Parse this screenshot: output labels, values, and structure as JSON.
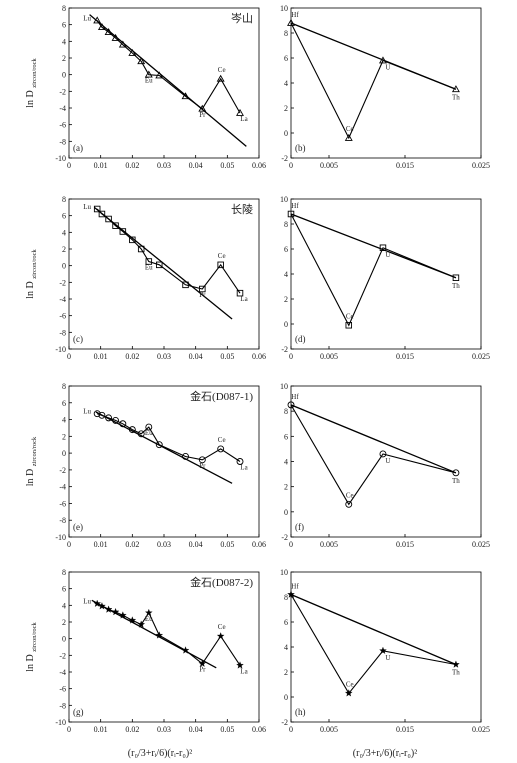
{
  "y_axis_label": {
    "main": "ln D",
    "sub": "zircon/rock"
  },
  "x_label_left": "(r₀/3+rᵢ/6)(rᵢ-r₀)²",
  "x_label_right": "(r₀/3+rᵢ/6)(rᵢ-r₀)²",
  "colors": {
    "axis": "#000000",
    "line": "#000000",
    "text": "#222222"
  },
  "chart_data": [
    {
      "type": "line",
      "panel": "a",
      "location": "岑山",
      "marker": "triangle",
      "xlim": [
        0,
        0.06
      ],
      "ylim": [
        -10,
        8
      ],
      "xticks": [
        0,
        0.01,
        0.02,
        0.03,
        0.04,
        0.05,
        0.06
      ],
      "yticks": [
        -10,
        -8,
        -6,
        -4,
        -2,
        0,
        2,
        4,
        6,
        8
      ],
      "series": [
        {
          "x": [
            0.0089,
            0.0104,
            0.0125,
            0.0147,
            0.017,
            0.02,
            0.0228,
            0.0252,
            0.0285,
            0.0368,
            0.0421,
            0.0479,
            0.054
          ],
          "y": [
            6.5,
            5.7,
            5.1,
            4.4,
            3.6,
            2.6,
            1.6,
            0.0,
            -0.1,
            -2.6,
            -4.1,
            -0.5,
            -4.6
          ]
        }
      ],
      "fit": {
        "x": [
          0.0065,
          0.056
        ],
        "y": [
          7.2,
          -8.6
        ]
      },
      "labels": [
        {
          "text": "Lu",
          "x": 0.0089,
          "y": 6.5
        },
        {
          "text": "Eu",
          "x": 0.0252,
          "y": 0.0
        },
        {
          "text": "Ce",
          "x": 0.0479,
          "y": -0.5
        },
        {
          "text": "Pr",
          "x": 0.0421,
          "y": -4.1
        },
        {
          "text": "La",
          "x": 0.054,
          "y": -4.6
        }
      ]
    },
    {
      "type": "line",
      "panel": "b",
      "marker": "triangle",
      "xlim": [
        0,
        0.025
      ],
      "ylim": [
        -2,
        10
      ],
      "xticks": [
        0,
        0.005,
        0.015,
        0.025
      ],
      "yticks": [
        -2,
        0,
        2,
        4,
        6,
        8,
        10
      ],
      "series": [
        {
          "x": [
            0,
            0.0076,
            0.0121,
            0.0217
          ],
          "y": [
            8.8,
            -0.4,
            5.8,
            3.5
          ]
        }
      ],
      "fit": {
        "x": [
          0,
          0.0217
        ],
        "y": [
          8.8,
          3.5
        ]
      },
      "labels": [
        {
          "text": "Hf",
          "x": 0,
          "y": 8.8
        },
        {
          "text": "Ce",
          "x": 0.0076,
          "y": -0.4
        },
        {
          "text": "U",
          "x": 0.0121,
          "y": 5.8
        },
        {
          "text": "Th",
          "x": 0.0217,
          "y": 3.5
        }
      ]
    },
    {
      "type": "line",
      "panel": "c",
      "location": "长陵",
      "marker": "square",
      "xlim": [
        0,
        0.06
      ],
      "ylim": [
        -10,
        8
      ],
      "xticks": [
        0,
        0.01,
        0.02,
        0.03,
        0.04,
        0.05,
        0.06
      ],
      "yticks": [
        -10,
        -8,
        -6,
        -4,
        -2,
        0,
        2,
        4,
        6,
        8
      ],
      "series": [
        {
          "x": [
            0.0089,
            0.0104,
            0.0125,
            0.0147,
            0.017,
            0.02,
            0.0228,
            0.0252,
            0.0285,
            0.0368,
            0.0421,
            0.0479,
            0.054
          ],
          "y": [
            6.8,
            6.2,
            5.6,
            4.8,
            4.1,
            3.1,
            2.0,
            0.5,
            0.1,
            -2.3,
            -2.8,
            0.1,
            -3.3
          ]
        }
      ],
      "fit": {
        "x": [
          0.008,
          0.0515
        ],
        "y": [
          7.0,
          -6.4
        ]
      },
      "labels": [
        {
          "text": "Lu",
          "x": 0.0089,
          "y": 6.8
        },
        {
          "text": "Eu",
          "x": 0.0252,
          "y": 0.5
        },
        {
          "text": "Ce",
          "x": 0.0479,
          "y": 0.1
        },
        {
          "text": "Pr",
          "x": 0.0421,
          "y": -2.8
        },
        {
          "text": "La",
          "x": 0.054,
          "y": -3.3
        }
      ]
    },
    {
      "type": "line",
      "panel": "d",
      "marker": "square",
      "xlim": [
        0,
        0.025
      ],
      "ylim": [
        -2,
        10
      ],
      "xticks": [
        0,
        0.005,
        0.015,
        0.025
      ],
      "yticks": [
        -2,
        0,
        2,
        4,
        6,
        8,
        10
      ],
      "series": [
        {
          "x": [
            0,
            0.0076,
            0.0121,
            0.0217
          ],
          "y": [
            8.8,
            -0.1,
            6.1,
            3.7
          ]
        }
      ],
      "fit": {
        "x": [
          0,
          0.0217
        ],
        "y": [
          8.8,
          3.7
        ]
      },
      "labels": [
        {
          "text": "Hf",
          "x": 0,
          "y": 8.8
        },
        {
          "text": "Ce",
          "x": 0.0076,
          "y": -0.1
        },
        {
          "text": "U",
          "x": 0.0121,
          "y": 6.1
        },
        {
          "text": "Th",
          "x": 0.0217,
          "y": 3.7
        }
      ]
    },
    {
      "type": "line",
      "panel": "e",
      "location": "金石(D087-1)",
      "marker": "circle",
      "xlim": [
        0,
        0.06
      ],
      "ylim": [
        -10,
        8
      ],
      "xticks": [
        0,
        0.01,
        0.02,
        0.03,
        0.04,
        0.05,
        0.06
      ],
      "yticks": [
        -10,
        -8,
        -6,
        -4,
        -2,
        0,
        2,
        4,
        6,
        8
      ],
      "series": [
        {
          "x": [
            0.0089,
            0.0104,
            0.0125,
            0.0147,
            0.017,
            0.02,
            0.0228,
            0.0252,
            0.0285,
            0.0368,
            0.0421,
            0.0479,
            0.054
          ],
          "y": [
            4.7,
            4.5,
            4.2,
            3.9,
            3.5,
            2.8,
            2.3,
            3.1,
            1.0,
            -0.4,
            -0.8,
            0.5,
            -1.0
          ]
        }
      ],
      "fit": {
        "x": [
          0.0085,
          0.0515
        ],
        "y": [
          4.9,
          -3.6
        ]
      },
      "labels": [
        {
          "text": "Lu",
          "x": 0.0089,
          "y": 4.7
        },
        {
          "text": "Eu",
          "x": 0.0252,
          "y": 3.1
        },
        {
          "text": "Ce",
          "x": 0.0479,
          "y": 0.5
        },
        {
          "text": "Pr",
          "x": 0.0421,
          "y": -0.8
        },
        {
          "text": "La",
          "x": 0.054,
          "y": -1.0
        }
      ]
    },
    {
      "type": "line",
      "panel": "f",
      "marker": "circle",
      "xlim": [
        0,
        0.025
      ],
      "ylim": [
        -2,
        10
      ],
      "xticks": [
        0,
        0.005,
        0.015,
        0.025
      ],
      "yticks": [
        -2,
        0,
        2,
        4,
        6,
        8,
        10
      ],
      "series": [
        {
          "x": [
            0,
            0.0076,
            0.0121,
            0.0217
          ],
          "y": [
            8.5,
            0.6,
            4.6,
            3.1
          ]
        }
      ],
      "fit": {
        "x": [
          0,
          0.0217
        ],
        "y": [
          8.5,
          3.1
        ]
      },
      "labels": [
        {
          "text": "Hf",
          "x": 0,
          "y": 8.5
        },
        {
          "text": "Ce",
          "x": 0.0076,
          "y": 0.6
        },
        {
          "text": "U",
          "x": 0.0121,
          "y": 4.6
        },
        {
          "text": "Th",
          "x": 0.0217,
          "y": 3.1
        }
      ]
    },
    {
      "type": "line",
      "panel": "g",
      "location": "金石(D087-2)",
      "marker": "star",
      "xlim": [
        0,
        0.06
      ],
      "ylim": [
        -10,
        8
      ],
      "xticks": [
        0,
        0.01,
        0.02,
        0.03,
        0.04,
        0.05,
        0.06
      ],
      "yticks": [
        -10,
        -8,
        -6,
        -4,
        -2,
        0,
        2,
        4,
        6,
        8
      ],
      "series": [
        {
          "x": [
            0.0089,
            0.0104,
            0.0125,
            0.0147,
            0.017,
            0.02,
            0.0228,
            0.0252,
            0.0285,
            0.0368,
            0.0421,
            0.0479,
            0.054
          ],
          "y": [
            4.2,
            3.9,
            3.5,
            3.2,
            2.8,
            2.2,
            1.7,
            3.1,
            0.4,
            -1.4,
            -3.0,
            0.3,
            -3.2
          ]
        }
      ],
      "fit": {
        "x": [
          0.0072,
          0.0465
        ],
        "y": [
          4.6,
          -3.5
        ]
      },
      "labels": [
        {
          "text": "Lu",
          "x": 0.0089,
          "y": 4.2
        },
        {
          "text": "Eu",
          "x": 0.0252,
          "y": 3.1
        },
        {
          "text": "Ce",
          "x": 0.0479,
          "y": 0.3
        },
        {
          "text": "Pr",
          "x": 0.0421,
          "y": -3.0
        },
        {
          "text": "La",
          "x": 0.054,
          "y": -3.2
        }
      ]
    },
    {
      "type": "line",
      "panel": "h",
      "marker": "star",
      "xlim": [
        0,
        0.025
      ],
      "ylim": [
        -2,
        10
      ],
      "xticks": [
        0,
        0.005,
        0.015,
        0.025
      ],
      "yticks": [
        -2,
        0,
        2,
        4,
        6,
        8,
        10
      ],
      "series": [
        {
          "x": [
            0,
            0.0076,
            0.0121,
            0.0217
          ],
          "y": [
            8.2,
            0.3,
            3.7,
            2.6
          ]
        }
      ],
      "fit": {
        "x": [
          0,
          0.0217
        ],
        "y": [
          8.2,
          2.6
        ]
      },
      "labels": [
        {
          "text": "Hf",
          "x": 0,
          "y": 8.2
        },
        {
          "text": "Ce",
          "x": 0.0076,
          "y": 0.3
        },
        {
          "text": "U",
          "x": 0.0121,
          "y": 3.7
        },
        {
          "text": "Th",
          "x": 0.0217,
          "y": 2.6
        }
      ]
    }
  ]
}
